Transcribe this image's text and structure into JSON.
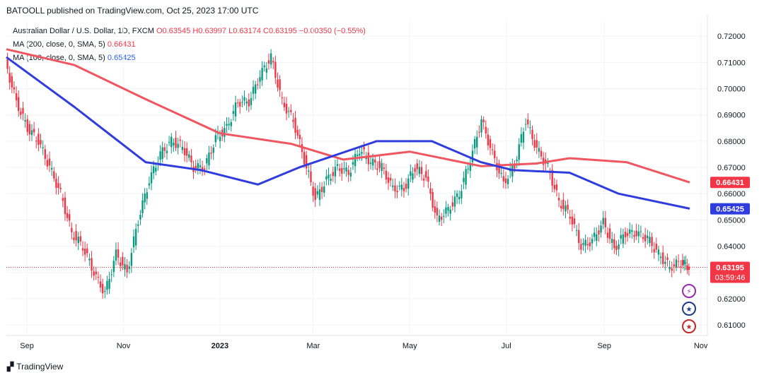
{
  "header": {
    "text": "BATOOLL published on TradingView.com, Oct 25, 2023 17:00 UTC"
  },
  "legend": {
    "symbol": "Australian Dollar / U.S. Dollar, 1D, FXCM",
    "ohlc": "O0.63545 H0.63997 L0.63174 C0.63195 −0.00350 (−0.55%)",
    "ma200_label": "MA (200, close, 0, SMA, 5)",
    "ma200_value": "0.66431",
    "ma100_label": "MA (100, close, 0, SMA, 5)",
    "ma100_value": "0.65425"
  },
  "colors": {
    "up": "#089981",
    "down": "#f23645",
    "ma200": "#f05560",
    "ma100": "#2f3cde",
    "grid": "#f0f3fa"
  },
  "footer": {
    "brand": "TradingView"
  },
  "chart_data": {
    "type": "line",
    "title": "Australian Dollar / U.S. Dollar, 1D, FXCM",
    "x_ticks": [
      "Sep",
      "Nov",
      "2023",
      "Mar",
      "May",
      "Jul",
      "Sep",
      "Nov"
    ],
    "y_ticks": [
      "0.72000",
      "0.71000",
      "0.70000",
      "0.69000",
      "0.68000",
      "0.67000",
      "0.66000",
      "0.65000",
      "0.64000",
      "0.63000",
      "0.62000",
      "0.61000"
    ],
    "ylim": [
      0.606,
      0.723
    ],
    "price_labels": [
      {
        "name": "MA 200",
        "value": 0.66431,
        "text": "0.66431"
      },
      {
        "name": "MA 100",
        "value": 0.65425,
        "text": "0.65425"
      },
      {
        "name": "Last",
        "value": 0.63195,
        "text": "0.63195",
        "countdown": "03:59:46"
      }
    ],
    "series": [
      {
        "name": "AUD/USD close",
        "points": [
          [
            "2022-08-19",
            0.71
          ],
          [
            "2022-08-26",
            0.695
          ],
          [
            "2022-09-02",
            0.685
          ],
          [
            "2022-09-09",
            0.68
          ],
          [
            "2022-09-16",
            0.67
          ],
          [
            "2022-09-23",
            0.66
          ],
          [
            "2022-09-30",
            0.645
          ],
          [
            "2022-10-07",
            0.64
          ],
          [
            "2022-10-14",
            0.63
          ],
          [
            "2022-10-21",
            0.622
          ],
          [
            "2022-10-28",
            0.637
          ],
          [
            "2022-11-04",
            0.63
          ],
          [
            "2022-11-11",
            0.65
          ],
          [
            "2022-11-18",
            0.665
          ],
          [
            "2022-11-25",
            0.675
          ],
          [
            "2022-12-02",
            0.68
          ],
          [
            "2022-12-09",
            0.678
          ],
          [
            "2022-12-16",
            0.67
          ],
          [
            "2022-12-23",
            0.67
          ],
          [
            "2022-12-30",
            0.681
          ],
          [
            "2023-01-06",
            0.685
          ],
          [
            "2023-01-13",
            0.695
          ],
          [
            "2023-01-20",
            0.695
          ],
          [
            "2023-01-27",
            0.705
          ],
          [
            "2023-02-03",
            0.712
          ],
          [
            "2023-02-10",
            0.695
          ],
          [
            "2023-02-17",
            0.688
          ],
          [
            "2023-02-24",
            0.673
          ],
          [
            "2023-03-03",
            0.658
          ],
          [
            "2023-03-10",
            0.665
          ],
          [
            "2023-03-17",
            0.67
          ],
          [
            "2023-03-24",
            0.668
          ],
          [
            "2023-03-31",
            0.677
          ],
          [
            "2023-04-07",
            0.672
          ],
          [
            "2023-04-14",
            0.67
          ],
          [
            "2023-04-21",
            0.662
          ],
          [
            "2023-04-28",
            0.662
          ],
          [
            "2023-05-05",
            0.67
          ],
          [
            "2023-05-12",
            0.666
          ],
          [
            "2023-05-19",
            0.65
          ],
          [
            "2023-05-26",
            0.654
          ],
          [
            "2023-06-02",
            0.66
          ],
          [
            "2023-06-09",
            0.673
          ],
          [
            "2023-06-16",
            0.688
          ],
          [
            "2023-06-23",
            0.675
          ],
          [
            "2023-06-30",
            0.664
          ],
          [
            "2023-07-07",
            0.671
          ],
          [
            "2023-07-14",
            0.688
          ],
          [
            "2023-07-21",
            0.677
          ],
          [
            "2023-07-28",
            0.67
          ],
          [
            "2023-08-04",
            0.657
          ],
          [
            "2023-08-11",
            0.652
          ],
          [
            "2023-08-18",
            0.64
          ],
          [
            "2023-08-25",
            0.642
          ],
          [
            "2023-09-01",
            0.649
          ],
          [
            "2023-09-08",
            0.639
          ],
          [
            "2023-09-15",
            0.645
          ],
          [
            "2023-09-22",
            0.645
          ],
          [
            "2023-09-29",
            0.643
          ],
          [
            "2023-10-06",
            0.637
          ],
          [
            "2023-10-13",
            0.632
          ],
          [
            "2023-10-20",
            0.634
          ],
          [
            "2023-10-25",
            0.632
          ]
        ]
      },
      {
        "name": "MA (200, close, 0, SMA, 5)",
        "points": [
          [
            "2022-08-19",
            0.715
          ],
          [
            "2022-10-01",
            0.709
          ],
          [
            "2022-11-15",
            0.696
          ],
          [
            "2023-01-01",
            0.683
          ],
          [
            "2023-02-15",
            0.679
          ],
          [
            "2023-03-20",
            0.673
          ],
          [
            "2023-05-01",
            0.676
          ],
          [
            "2023-06-15",
            0.6705
          ],
          [
            "2023-07-20",
            0.6715
          ],
          [
            "2023-08-10",
            0.6735
          ],
          [
            "2023-09-15",
            0.672
          ],
          [
            "2023-10-25",
            0.6643
          ]
        ]
      },
      {
        "name": "MA (100, close, 0, SMA, 5)",
        "points": [
          [
            "2022-08-19",
            0.712
          ],
          [
            "2022-10-01",
            0.693
          ],
          [
            "2022-11-15",
            0.672
          ],
          [
            "2022-12-20",
            0.669
          ],
          [
            "2023-01-25",
            0.6635
          ],
          [
            "2023-02-20",
            0.67
          ],
          [
            "2023-04-10",
            0.68
          ],
          [
            "2023-05-15",
            0.68
          ],
          [
            "2023-06-15",
            0.672
          ],
          [
            "2023-07-05",
            0.669
          ],
          [
            "2023-08-10",
            0.668
          ],
          [
            "2023-09-10",
            0.66
          ],
          [
            "2023-10-25",
            0.6543
          ]
        ]
      }
    ]
  }
}
